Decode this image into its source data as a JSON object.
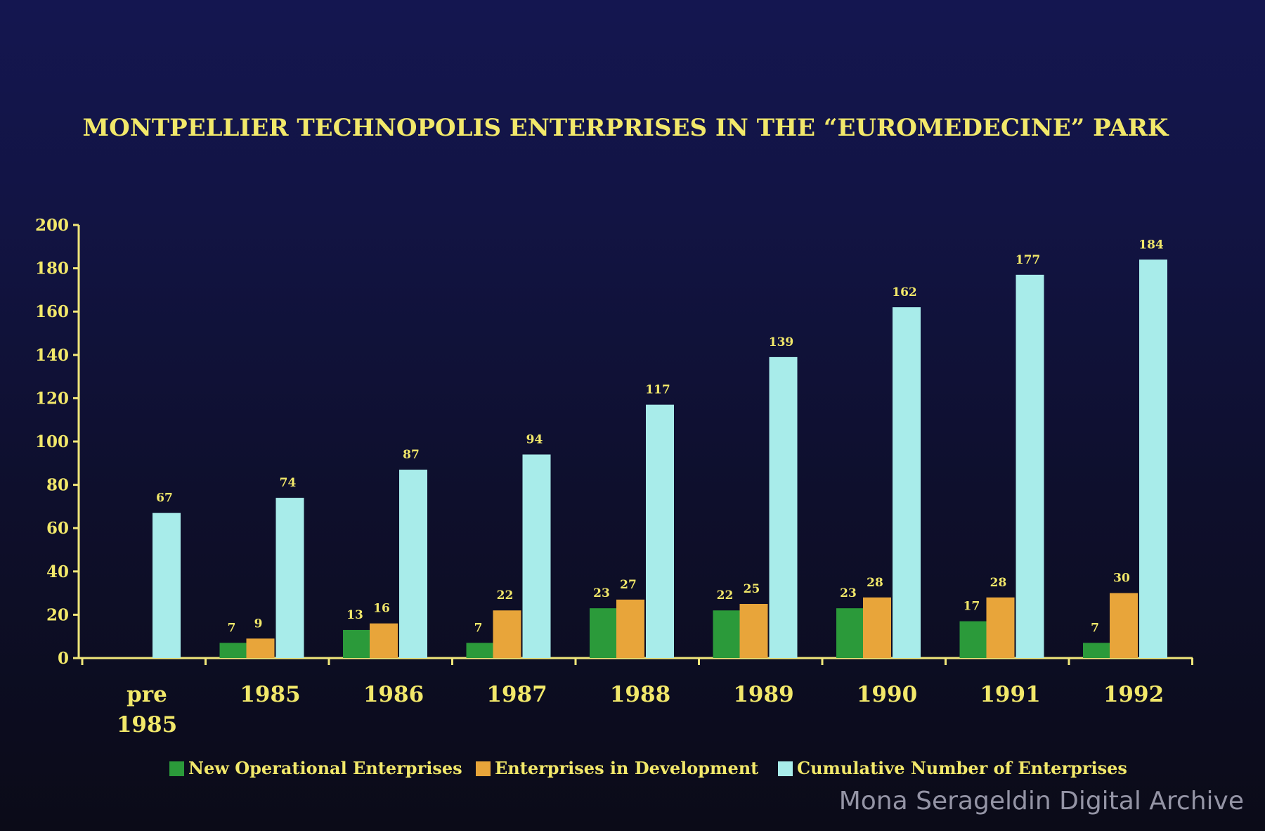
{
  "chart_data": {
    "type": "bar",
    "title": "MONTPELLIER TECHNOPOLIS ENTERPRISES IN THE “EUROMEDECINE” PARK",
    "xlabel": "",
    "ylabel": "",
    "ylim": [
      0,
      200
    ],
    "yticks": [
      0,
      20,
      40,
      60,
      80,
      100,
      120,
      140,
      160,
      180,
      200
    ],
    "grid": false,
    "legend_position": "bottom",
    "categories": [
      [
        "pre",
        "1985"
      ],
      [
        "1985"
      ],
      [
        "1986"
      ],
      [
        "1987"
      ],
      [
        "1988"
      ],
      [
        "1989"
      ],
      [
        "1990"
      ],
      [
        "1991"
      ],
      [
        "1992"
      ]
    ],
    "series": [
      {
        "name": "New Operational Enterprises",
        "color": "#2b9a3a",
        "values": [
          null,
          7,
          13,
          7,
          23,
          22,
          23,
          17,
          7
        ]
      },
      {
        "name": "Enterprises in Development",
        "color": "#e8a53a",
        "values": [
          null,
          9,
          16,
          22,
          27,
          25,
          28,
          28,
          30
        ]
      },
      {
        "name": "Cumulative Number of Enterprises",
        "color": "#a8ecea",
        "values": [
          67,
          74,
          87,
          94,
          117,
          139,
          162,
          177,
          184
        ]
      }
    ],
    "text_color": "#f2e86a",
    "axis_color": "#f0e67a"
  },
  "watermark": "Mona Serageldin Digital Archive"
}
